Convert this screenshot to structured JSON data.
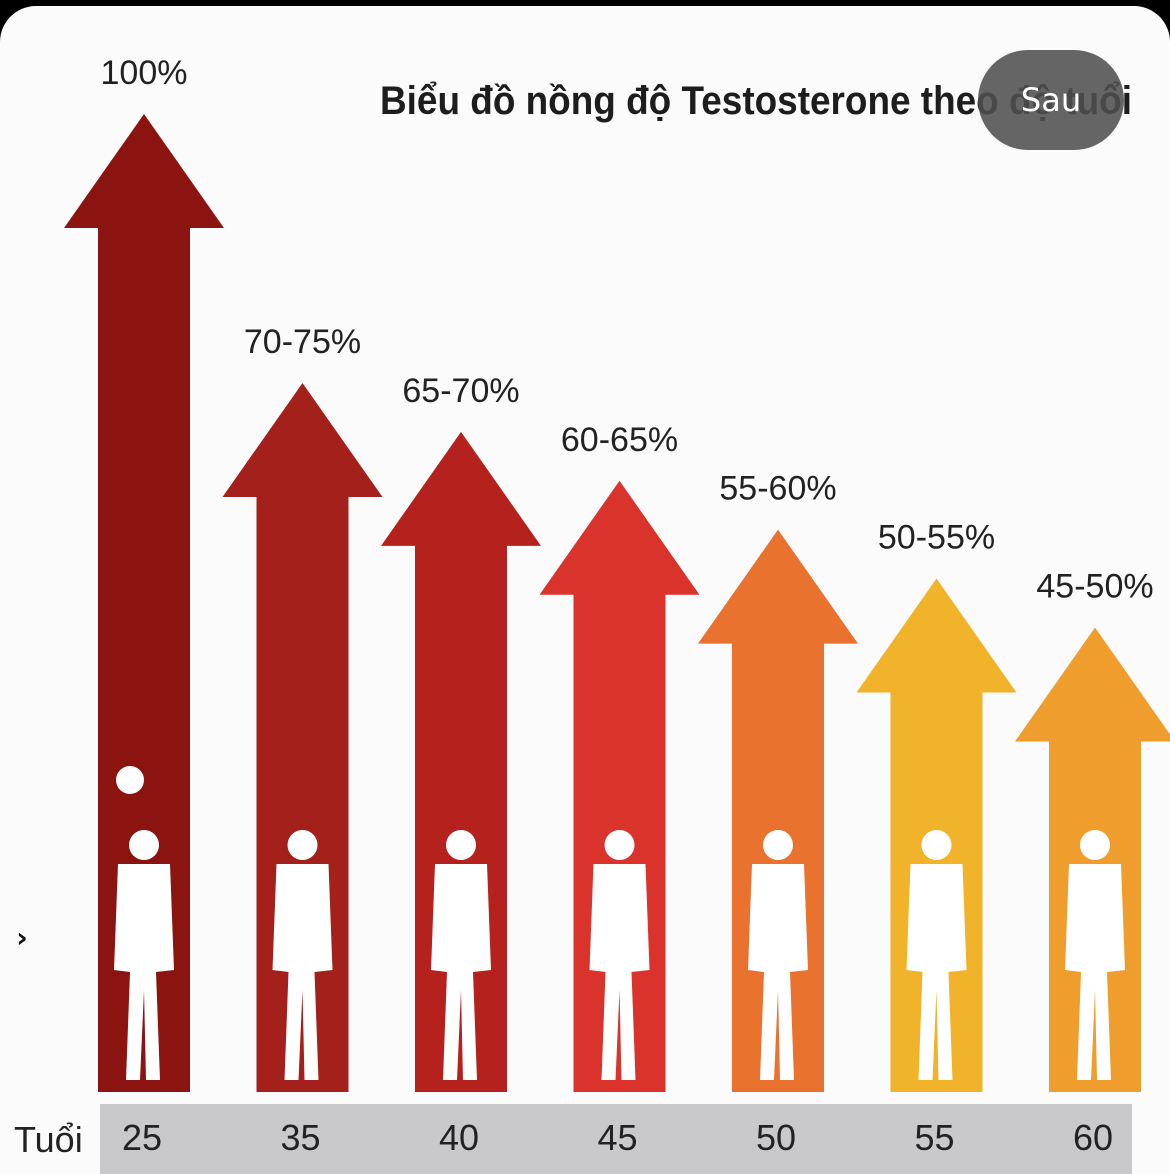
{
  "chart_data": {
    "type": "bar",
    "title": "Biểu đồ nồng độ Testosterone theo độ tuổi",
    "xlabel": "Tuổi",
    "categories": [
      "25",
      "35",
      "40",
      "45",
      "50",
      "55",
      "60"
    ],
    "value_labels": [
      "100%",
      "70-75%",
      "65-70%",
      "60-65%",
      "55-60%",
      "50-55%",
      "45-50%"
    ],
    "values_pct": [
      100,
      72.5,
      67.5,
      62.5,
      57.5,
      52.5,
      47.5
    ],
    "colors": [
      "#8b1410",
      "#a3201b",
      "#b5221e",
      "#d9332c",
      "#e8722e",
      "#f0b32a",
      "#ef9e2e"
    ]
  },
  "overlay": {
    "next_button": "Sau",
    "side_arrow": "›"
  }
}
